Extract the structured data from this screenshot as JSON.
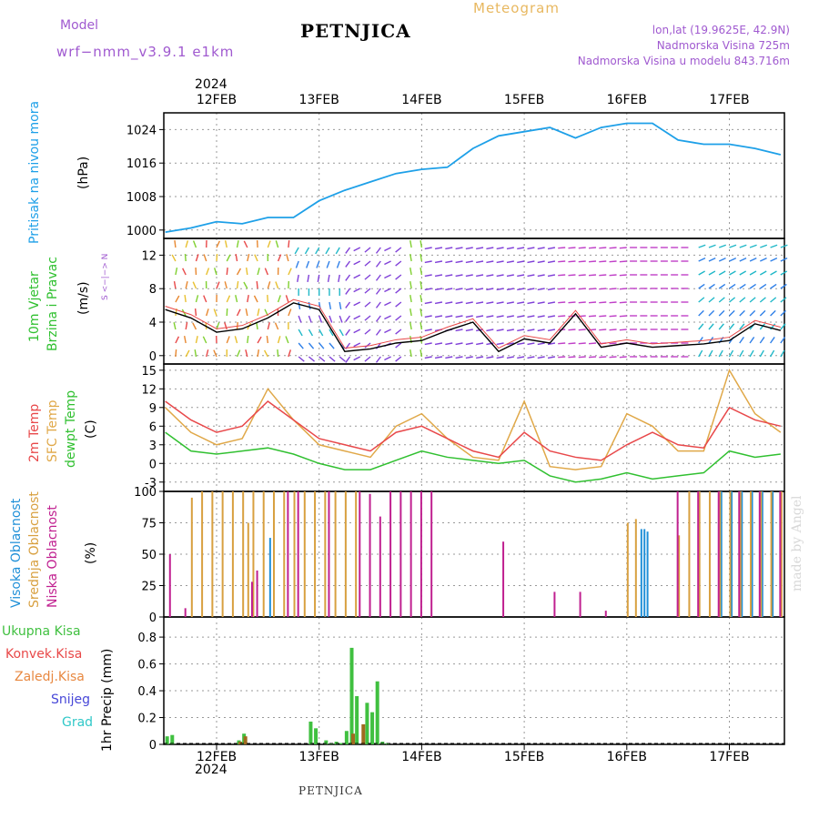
{
  "header": {
    "model_label": "Model",
    "model_run": "wrf−nmm_v3.9.1  e1km",
    "title": "PETNJICA",
    "meteogram_label": "Meteogram",
    "lonlat": "lon,lat (19.9625E, 42.9N)",
    "elevation": "Nadmorska Visina 725m",
    "model_elevation": "Nadmorska Visina u modelu 843.716m"
  },
  "footer": {
    "station": "PETNJICA",
    "watermark": "made by Angel"
  },
  "axes": {
    "year_top": "2024",
    "year_bottom": "2024",
    "date_ticks": [
      "12FEB",
      "13FEB",
      "14FEB",
      "15FEB",
      "16FEB",
      "17FEB"
    ]
  },
  "panel_labels": {
    "pressure": {
      "name": "Pritisak na nivou mora",
      "unit": "(hPa)"
    },
    "wind": {
      "name1": "10m Vjetar",
      "name2": "Brzina i Pravac",
      "unit": "(m/s)",
      "compass": "w <−|−> E",
      "compass2": "S <−|−> N"
    },
    "temp": {
      "t2m": "2m Temp",
      "sfc": "SFC Temp",
      "dew": "dewpt Temp",
      "unit": "(C)"
    },
    "cloud": {
      "high": "Visoka Oblacnost",
      "mid": "Srednja Oblacnost",
      "low": "Niska Oblacnost",
      "unit": "(%)"
    },
    "precip": {
      "total": "Ukupna Kisa",
      "conv": "Konvek.Kisa",
      "frozen": "Zaledj.Kisa",
      "snow": "Snijeg",
      "graupel": "Grad",
      "unit": "1hr Precip (mm)"
    }
  },
  "colors": {
    "pressure": "#1ea0e8",
    "t2m": "#e8484a",
    "sfc": "#e0a848",
    "dew": "#30c030",
    "cloud_high": "#2090d8",
    "cloud_mid": "#d8a040",
    "cloud_low": "#c02090",
    "precip_total": "#40c040",
    "precip_conv": "#e84848",
    "precip_frozen": "#e88840",
    "snow": "#4848d8",
    "graupel": "#30c8c8"
  },
  "chart_data": [
    {
      "type": "line",
      "title": "Pritisak na nivou mora",
      "ylabel": "(hPa)",
      "ylim": [
        998,
        1028
      ],
      "yticks": [
        1000,
        1008,
        1016,
        1024
      ],
      "x": [
        0,
        0.25,
        0.5,
        0.75,
        1,
        1.25,
        1.5,
        1.75,
        2,
        2.25,
        2.5,
        2.75,
        3,
        3.25,
        3.5,
        3.75,
        4,
        4.25,
        4.5,
        4.75,
        5,
        5.25,
        5.5,
        5.75,
        6
      ],
      "series": [
        {
          "name": "Pritisak na nivou mora",
          "values": [
            999.5,
            1000.5,
            1002,
            1001.5,
            1003,
            1003,
            1007,
            1009.5,
            1011.5,
            1013.5,
            1014.5,
            1015,
            1019.5,
            1022.5,
            1023.5,
            1024.5,
            1022,
            1024.5,
            1025.5,
            1025.5,
            1021.5,
            1020.5,
            1020.5,
            1019.5,
            1018
          ]
        }
      ]
    },
    {
      "type": "line",
      "title": "10m Vjetar Brzina i Pravac",
      "ylabel": "(m/s)",
      "ylim": [
        -1,
        14
      ],
      "yticks": [
        0,
        4,
        8,
        12
      ],
      "x": [
        0,
        0.25,
        0.5,
        0.75,
        1,
        1.25,
        1.5,
        1.75,
        2,
        2.25,
        2.5,
        2.75,
        3,
        3.25,
        3.5,
        3.75,
        4,
        4.25,
        4.5,
        4.75,
        5,
        5.25,
        5.5,
        5.75,
        6
      ],
      "series": [
        {
          "name": "10m Vjetar",
          "values": [
            5.5,
            4.5,
            2.8,
            3.2,
            4.5,
            6.3,
            5.5,
            0.5,
            0.8,
            1.5,
            1.8,
            3.0,
            4.0,
            0.5,
            2.0,
            1.5,
            5.0,
            1.0,
            1.5,
            1.0,
            1.2,
            1.4,
            1.8,
            3.8,
            3.0
          ]
        }
      ]
    },
    {
      "type": "line",
      "title": "2m Temp / SFC Temp / dewpt Temp",
      "ylabel": "(C)",
      "ylim": [
        -4.5,
        16
      ],
      "yticks": [
        -3,
        0,
        3,
        6,
        9,
        12,
        15
      ],
      "x": [
        0,
        0.25,
        0.5,
        0.75,
        1,
        1.25,
        1.5,
        1.75,
        2,
        2.25,
        2.5,
        2.75,
        3,
        3.25,
        3.5,
        3.75,
        4,
        4.25,
        4.5,
        4.75,
        5,
        5.25,
        5.5,
        5.75,
        6
      ],
      "series": [
        {
          "name": "2m Temp",
          "values": [
            10,
            7,
            5,
            6,
            10,
            7,
            4,
            3,
            2,
            5,
            6,
            4,
            2,
            1,
            5,
            2,
            1,
            0.5,
            3,
            5,
            3,
            2.5,
            9,
            7,
            6
          ]
        },
        {
          "name": "SFC Temp",
          "values": [
            9,
            5,
            3,
            4,
            12,
            7,
            3,
            2,
            1,
            6,
            8,
            4,
            1,
            0.5,
            10,
            -0.5,
            -1,
            -0.5,
            8,
            6,
            2,
            2,
            15,
            8,
            5
          ]
        },
        {
          "name": "dewpt Temp",
          "values": [
            5,
            2,
            1.5,
            2,
            2.5,
            1.5,
            0,
            -1,
            -1,
            0.5,
            2,
            1,
            0.5,
            0,
            0.5,
            -2,
            -3,
            -2.5,
            -1.5,
            -2.5,
            -2,
            -1.5,
            2,
            1,
            1.5
          ]
        }
      ]
    },
    {
      "type": "bar",
      "title": "Oblacnost",
      "ylabel": "(%)",
      "ylim": [
        0,
        100
      ],
      "yticks": [
        0,
        25,
        50,
        75,
        100
      ],
      "series": [
        {
          "name": "Visoka Oblacnost",
          "x": [
            1.0,
            4.62,
            4.65,
            4.68,
            5.4,
            5.5,
            5.6,
            5.7,
            5.8,
            5.9
          ],
          "values": [
            63,
            70,
            70,
            68,
            100,
            100,
            100,
            100,
            100,
            100
          ]
        },
        {
          "name": "Srednja Oblacnost",
          "x": [
            0.25,
            0.35,
            0.45,
            0.55,
            0.65,
            0.75,
            0.8,
            0.85,
            0.95,
            1.05,
            1.15,
            1.25,
            1.35,
            1.45,
            1.55,
            1.65,
            1.75,
            1.85,
            4.5,
            4.58,
            5.0,
            5.1,
            5.2,
            5.3,
            5.4,
            5.5,
            5.6,
            5.7,
            5.8,
            5.9,
            6.0
          ],
          "values": [
            95,
            100,
            100,
            100,
            100,
            100,
            75,
            100,
            100,
            100,
            100,
            100,
            100,
            100,
            100,
            100,
            100,
            100,
            75,
            78,
            65,
            100,
            100,
            100,
            100,
            100,
            100,
            100,
            100,
            100,
            100
          ]
        },
        {
          "name": "Niska Oblacnost",
          "x": [
            0.05,
            0.2,
            0.85,
            0.9,
            1.2,
            1.3,
            1.6,
            1.9,
            2.0,
            2.1,
            2.2,
            2.3,
            2.4,
            2.5,
            2.6,
            3.3,
            3.8,
            4.05,
            4.3,
            5.0,
            5.2,
            5.4,
            5.6,
            5.8,
            6.0
          ],
          "values": [
            50,
            7,
            28,
            37,
            100,
            100,
            100,
            100,
            98,
            80,
            100,
            100,
            100,
            100,
            100,
            60,
            20,
            20,
            5,
            100,
            100,
            100,
            100,
            100,
            100
          ]
        }
      ]
    },
    {
      "type": "bar",
      "title": "1hr Precip",
      "ylabel": "1hr Precip (mm)",
      "ylim": [
        0,
        0.95
      ],
      "yticks": [
        0,
        0.2,
        0.4,
        0.6,
        0.8
      ],
      "series": [
        {
          "name": "Ukupna Kisa",
          "x": [
            0.0,
            0.05,
            0.7,
            0.75,
            1.4,
            1.45,
            1.55,
            1.6,
            1.65,
            1.7,
            1.75,
            1.8,
            1.85,
            1.95,
            2.0,
            2.05,
            2.1,
            2.15
          ],
          "values": [
            0.06,
            0.07,
            0.03,
            0.08,
            0.17,
            0.12,
            0.03,
            0.01,
            0.02,
            0.01,
            0.1,
            0.72,
            0.36,
            0.31,
            0.24,
            0.47,
            0.02,
            0.01
          ]
        },
        {
          "name": "Konvek.Kisa",
          "x": [
            0.7,
            0.75,
            1.8,
            1.9
          ],
          "values": [
            0.02,
            0.06,
            0.08,
            0.15
          ]
        }
      ]
    }
  ]
}
